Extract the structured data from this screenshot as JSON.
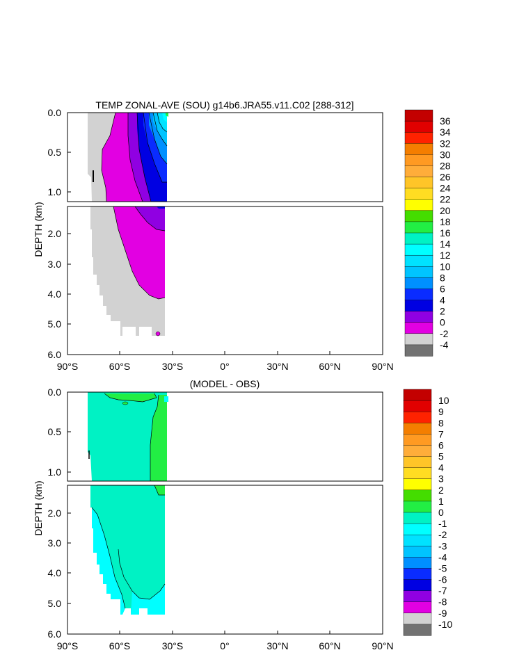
{
  "figure": {
    "title_top": "TEMP ZONAL-AVE (SOU) g14b6.JRA55.v11.C02 [288-312]",
    "title_bottom": "(MODEL - OBS)",
    "ylabel": "DEPTH (km)",
    "xticks": [
      "90°S",
      "60°S",
      "30°S",
      "0°",
      "30°N",
      "60°N",
      "90°N"
    ],
    "yticks_upper": [
      "0.0",
      "0.5",
      "1.0"
    ],
    "yticks_lower": [
      "2.0",
      "3.0",
      "4.0",
      "5.0",
      "6.0"
    ]
  },
  "chart_data": [
    {
      "type": "heatmap",
      "title": "TEMP ZONAL-AVE (SOU) g14b6.JRA55.v11.C02 [288-312]",
      "xlabel": "",
      "ylabel": "DEPTH (km)",
      "xlim": [
        -90,
        90
      ],
      "ylim_km": [
        0,
        6
      ],
      "data_extent_lat": [
        -78,
        -34
      ],
      "colorbar": {
        "labels": [
          "36",
          "34",
          "32",
          "30",
          "28",
          "26",
          "24",
          "22",
          "20",
          "18",
          "16",
          "14",
          "12",
          "10",
          "8",
          "6",
          "4",
          "2",
          "0",
          "-2",
          "-4"
        ],
        "colors": [
          "#c30000",
          "#e10000",
          "#ff2200",
          "#f47e00",
          "#ff9a22",
          "#ffad3a",
          "#ffc528",
          "#ffdd22",
          "#ffff00",
          "#44dd00",
          "#22ee44",
          "#00f2c4",
          "#00ffff",
          "#00e2ff",
          "#00c4ff",
          "#0090ff",
          "#0a2cff",
          "#0000e2",
          "#9000e2",
          "#e200e2",
          "#d2d2d2",
          "#727272"
        ]
      },
      "regions_upper": [
        {
          "level": "-2",
          "color": "#d2d2d2",
          "lat": [
            -78,
            -34
          ],
          "depth": [
            0,
            1.0
          ]
        },
        {
          "level": "0",
          "color": "#e200e2",
          "lat": [
            -63,
            -34
          ],
          "depth": [
            0,
            1.0
          ]
        },
        {
          "level": "2",
          "color": "#9000e2",
          "lat": [
            -55,
            -34
          ],
          "depth": [
            0,
            1.0
          ]
        },
        {
          "level": "4",
          "color": "#0000e2",
          "lat": [
            -50,
            -34
          ],
          "depth": [
            0,
            1.0
          ]
        },
        {
          "level": "6",
          "color": "#0a2cff",
          "lat": [
            -46,
            -34
          ],
          "depth": [
            0,
            1.0
          ]
        },
        {
          "level": "8",
          "color": "#0090ff",
          "lat": [
            -42,
            -34
          ],
          "depth": [
            0,
            1.0
          ]
        },
        {
          "level": "10",
          "color": "#00c4ff",
          "lat": [
            -39,
            -34
          ],
          "depth": [
            0,
            0.7
          ]
        },
        {
          "level": "12",
          "color": "#00e2ff",
          "lat": [
            -37,
            -34
          ],
          "depth": [
            0,
            0.35
          ]
        },
        {
          "level": "14",
          "color": "#00ffff",
          "lat": [
            -35,
            -34
          ],
          "depth": [
            0,
            0.15
          ]
        }
      ],
      "regions_lower": [
        {
          "level": "-2",
          "color": "#d2d2d2",
          "lat": [
            -75,
            -34
          ],
          "depth": [
            1.0,
            5.4
          ]
        },
        {
          "level": "0",
          "color": "#e200e2",
          "lat": [
            -62,
            -34
          ],
          "depth": [
            1.0,
            4.1
          ]
        },
        {
          "level": "2",
          "color": "#9000e2",
          "lat": [
            -47,
            -34
          ],
          "depth": [
            1.0,
            1.9
          ]
        }
      ]
    },
    {
      "type": "heatmap",
      "title": "(MODEL - OBS)",
      "xlabel": "",
      "ylabel": "DEPTH (km)",
      "xlim": [
        -90,
        90
      ],
      "ylim_km": [
        0,
        6
      ],
      "data_extent_lat": [
        -78,
        -34
      ],
      "colorbar": {
        "labels": [
          "10",
          "9",
          "8",
          "7",
          "6",
          "5",
          "4",
          "3",
          "2",
          "1",
          "0",
          "-1",
          "-2",
          "-3",
          "-4",
          "-5",
          "-6",
          "-7",
          "-8",
          "-9",
          "-10"
        ],
        "colors": [
          "#c30000",
          "#e10000",
          "#ff2200",
          "#f47e00",
          "#ff9a22",
          "#ffad3a",
          "#ffc528",
          "#ffdd22",
          "#ffff00",
          "#44dd00",
          "#22ee44",
          "#00f2c4",
          "#00ffff",
          "#00e2ff",
          "#00c4ff",
          "#0090ff",
          "#0a2cff",
          "#0000e2",
          "#9000e2",
          "#e200e2",
          "#d2d2d2",
          "#727272"
        ]
      },
      "regions_upper": [
        {
          "level": "-1",
          "color": "#00f2c4",
          "lat": [
            -78,
            -34
          ],
          "depth": [
            0,
            1.0
          ]
        },
        {
          "level": "0",
          "color": "#22ee44",
          "lat": [
            -37,
            -34
          ],
          "depth": [
            0,
            1.0
          ]
        },
        {
          "level": "0",
          "color": "#22ee44",
          "lat": [
            -58,
            -44
          ],
          "depth": [
            0,
            0.1
          ]
        }
      ],
      "regions_lower": [
        {
          "level": "-1",
          "color": "#00f2c4",
          "lat": [
            -75,
            -34
          ],
          "depth": [
            1.0,
            5.4
          ]
        },
        {
          "level": "-2",
          "color": "#00ffff",
          "lat": [
            -74,
            -62
          ],
          "depth": [
            1.5,
            5.4
          ]
        },
        {
          "level": "-2",
          "color": "#00ffff",
          "lat": [
            -45,
            -34
          ],
          "depth": [
            4.6,
            5.4
          ]
        },
        {
          "level": "0",
          "color": "#22ee44",
          "lat": [
            -38,
            -34
          ],
          "depth": [
            1.0,
            1.3
          ]
        }
      ]
    }
  ]
}
